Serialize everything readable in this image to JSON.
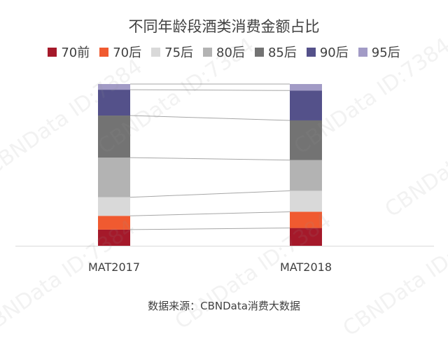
{
  "watermark": "CBNData ID:7384",
  "chart_data": {
    "type": "bar",
    "stacked": true,
    "title": "不同年龄段酒类消费金额占比",
    "categories": [
      "MAT2017",
      "MAT2018"
    ],
    "ylim": [
      0,
      1
    ],
    "legend_position": "top",
    "grid": false,
    "connector_lines": true,
    "series": [
      {
        "name": "70前",
        "color": "#a5192a",
        "values": [
          0.1,
          0.11
        ]
      },
      {
        "name": "70后",
        "color": "#f05a30",
        "values": [
          0.085,
          0.1
        ]
      },
      {
        "name": "75后",
        "color": "#d9d9d9",
        "values": [
          0.115,
          0.13
        ]
      },
      {
        "name": "80后",
        "color": "#b3b3b3",
        "values": [
          0.245,
          0.19
        ]
      },
      {
        "name": "85后",
        "color": "#737373",
        "values": [
          0.26,
          0.245
        ]
      },
      {
        "name": "90后",
        "color": "#54518a",
        "values": [
          0.16,
          0.185
        ]
      },
      {
        "name": "95后",
        "color": "#a29bc6",
        "values": [
          0.035,
          0.04
        ]
      }
    ]
  },
  "source": "数据来源：CBNData消费大数据"
}
